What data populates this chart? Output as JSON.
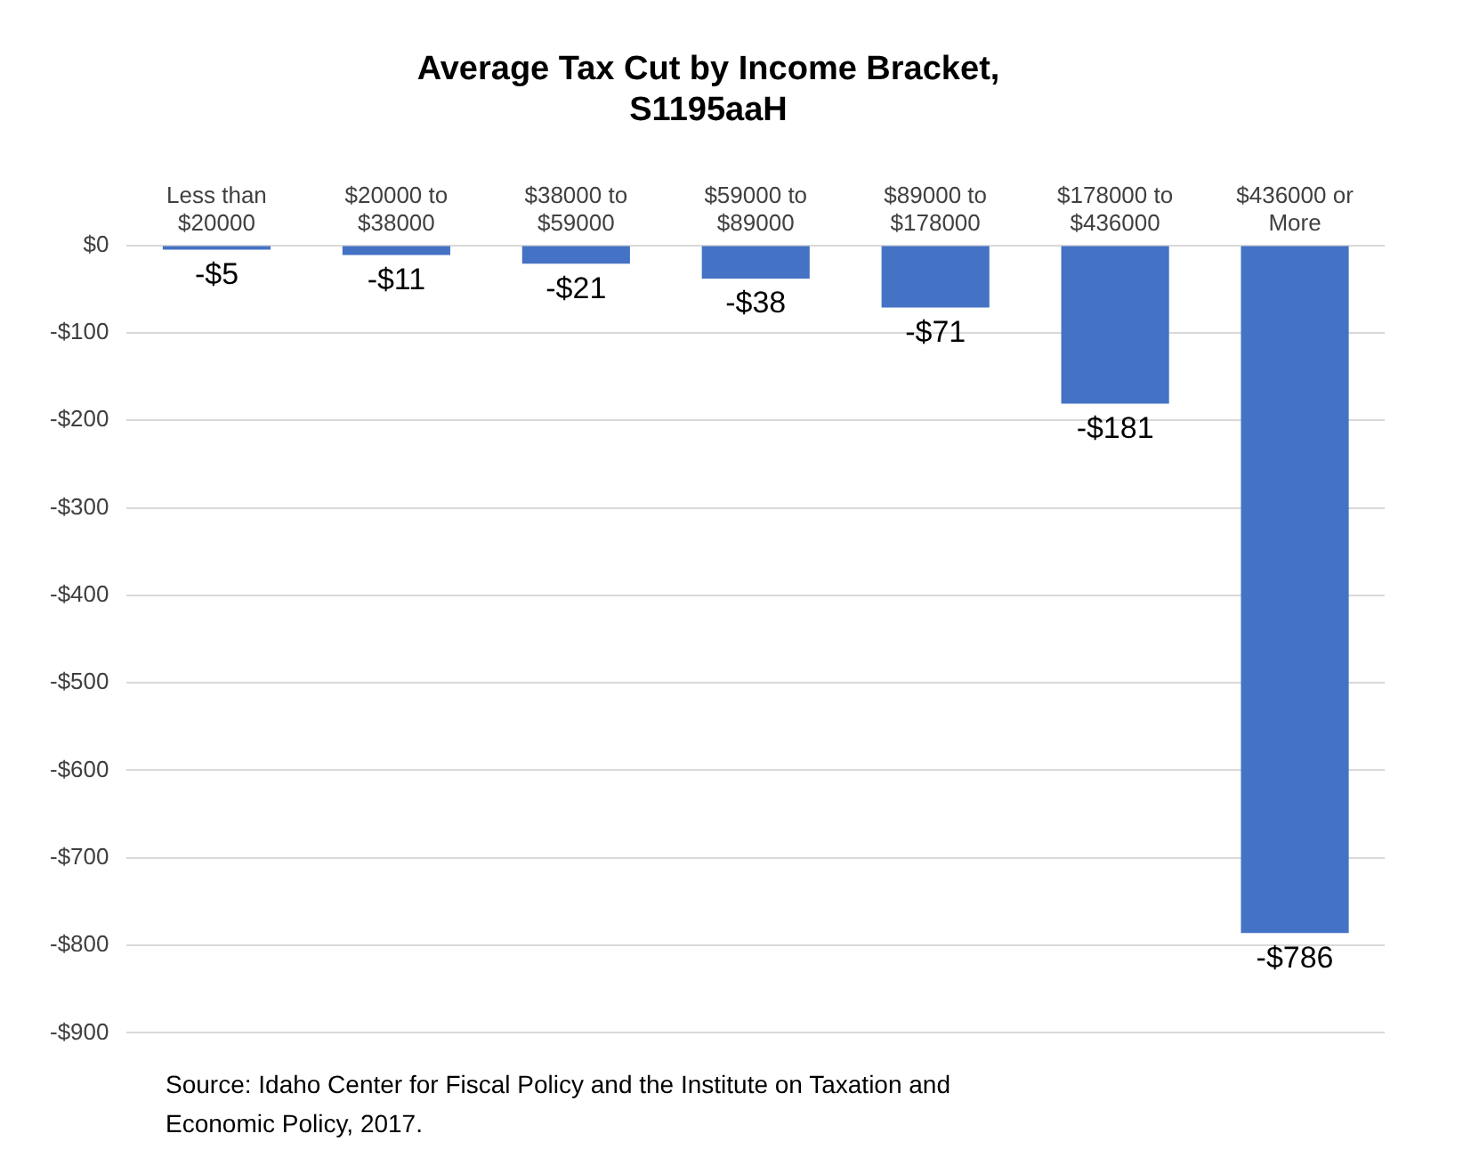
{
  "chart_data": {
    "type": "bar",
    "title": "Average Tax Cut by Income Bracket, S1195aaH",
    "categories": [
      "Less than $20000",
      "$20000 to $38000",
      "$38000 to $59000",
      "$59000 to $89000",
      "$89000 to $178000",
      "$178000 to $436000",
      "$436000 or More"
    ],
    "values": [
      -5,
      -11,
      -21,
      -38,
      -71,
      -181,
      -786
    ],
    "value_labels": [
      "-$5",
      "-$11",
      "-$21",
      "-$38",
      "-$71",
      "-$181",
      "-$786"
    ],
    "color": "#4472c4",
    "ylim": [
      -900,
      0
    ],
    "yticks": [
      {
        "value": 0,
        "label": "$0"
      },
      {
        "value": -100,
        "label": "-$100"
      },
      {
        "value": -200,
        "label": "-$200"
      },
      {
        "value": -300,
        "label": "-$300"
      },
      {
        "value": -400,
        "label": "-$400"
      },
      {
        "value": -500,
        "label": "-$500"
      },
      {
        "value": -600,
        "label": "-$600"
      },
      {
        "value": -700,
        "label": "-$700"
      },
      {
        "value": -800,
        "label": "-$800"
      },
      {
        "value": -900,
        "label": "-$900"
      }
    ],
    "grid": "y",
    "annotations": [
      "Source: Idaho Center for Fiscal Policy and the Institute on Taxation and Economic Policy, 2017."
    ]
  }
}
